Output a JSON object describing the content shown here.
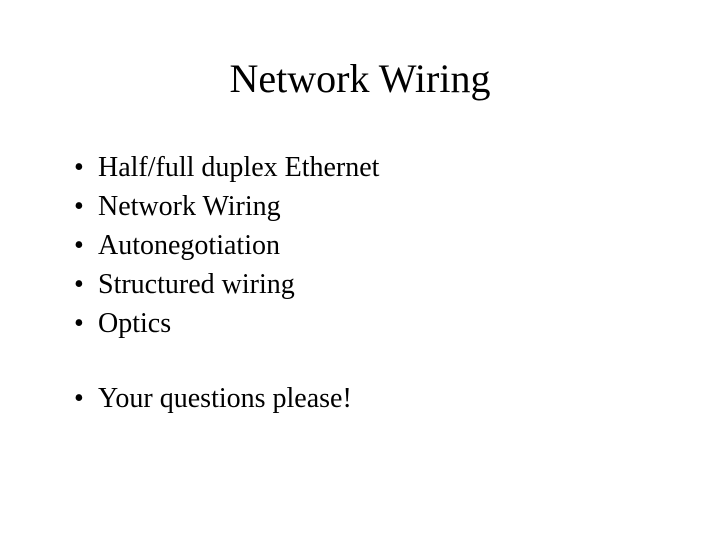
{
  "slide": {
    "title": "Network Wiring",
    "title_fontsize": 40,
    "body_fontsize": 28,
    "background_color": "#ffffff",
    "text_color": "#000000",
    "font_family": "Times New Roman",
    "bullets_group1": [
      "Half/full duplex Ethernet",
      "Network Wiring",
      "Autonegotiation",
      "Structured wiring",
      "Optics"
    ],
    "bullets_group2": [
      "Your questions please!"
    ],
    "bullet_marker": "•"
  }
}
